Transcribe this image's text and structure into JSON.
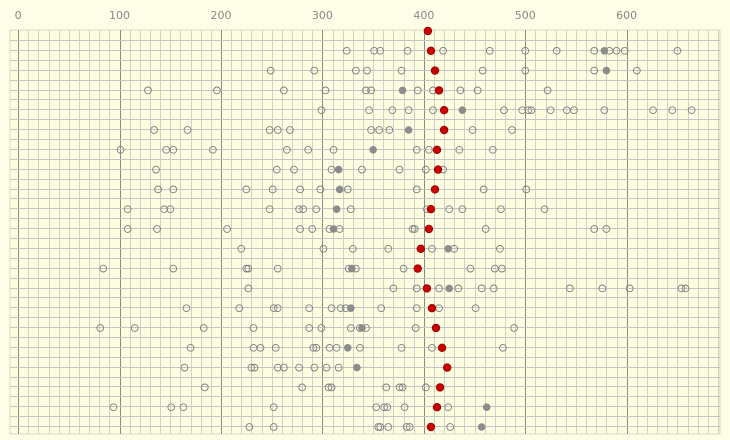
{
  "chart_data": {
    "type": "scatter",
    "title": "",
    "xlabel": "",
    "ylabel": "",
    "xlim": [
      -8,
      692
    ],
    "xticks": [
      0,
      100,
      200,
      300,
      400,
      500,
      600
    ],
    "grid": true,
    "colors": {
      "background": "#fefee8",
      "plot_background": "#fdfde0",
      "hollow_stroke": "#7f7f7f",
      "filled_gray": "#8c8c8c",
      "mean_fill": "#c80000"
    },
    "marker_kinds": [
      "hollow",
      "filled",
      "mean"
    ],
    "rows": [
      {
        "mean": 404,
        "hollow": [],
        "filled": []
      },
      {
        "mean": 407,
        "hollow": [
          324,
          351,
          357,
          384,
          419,
          465,
          500,
          531,
          568,
          583,
          590,
          598,
          650
        ],
        "filled": [
          578
        ]
      },
      {
        "mean": 411,
        "hollow": [
          249,
          292,
          333,
          344,
          378,
          458,
          500,
          568,
          610
        ],
        "filled": [
          580
        ]
      },
      {
        "mean": 415,
        "hollow": [
          128,
          196,
          262,
          303,
          343,
          348,
          394,
          409,
          436,
          453,
          522
        ],
        "filled": [
          379
        ]
      },
      {
        "mean": 420,
        "hollow": [
          299,
          346,
          369,
          385,
          409,
          479,
          497,
          503,
          506,
          525,
          541,
          548,
          578,
          626,
          645,
          664
        ],
        "filled": [
          438
        ]
      },
      {
        "mean": 420,
        "hollow": [
          134,
          167,
          248,
          256,
          268,
          348,
          356,
          366,
          448,
          487
        ],
        "filled": [
          385
        ]
      },
      {
        "mean": 413,
        "hollow": [
          101,
          146,
          153,
          192,
          265,
          286,
          311,
          393,
          405,
          435,
          468
        ],
        "filled": [
          350
        ]
      },
      {
        "mean": 414,
        "hollow": [
          136,
          255,
          272,
          309,
          339,
          376,
          402,
          419
        ],
        "filled": [
          316
        ]
      },
      {
        "mean": 411,
        "hollow": [
          138,
          153,
          225,
          251,
          278,
          298,
          325,
          393,
          459,
          501
        ],
        "filled": [
          317
        ]
      },
      {
        "mean": 407,
        "hollow": [
          108,
          144,
          150,
          248,
          277,
          281,
          294,
          328,
          403,
          425,
          438,
          476,
          519
        ],
        "filled": [
          314
        ]
      },
      {
        "mean": 405,
        "hollow": [
          108,
          137,
          206,
          278,
          290,
          307,
          317,
          389,
          391,
          461,
          568,
          580
        ],
        "filled": [
          311
        ]
      },
      {
        "mean": 397,
        "hollow": [
          220,
          301,
          330,
          365,
          408,
          430,
          475
        ],
        "filled": [
          424
        ]
      },
      {
        "mean": 394,
        "hollow": [
          84,
          153,
          225,
          227,
          256,
          326,
          333,
          380,
          446,
          470,
          477
        ],
        "filled": [
          329
        ]
      },
      {
        "mean": 403,
        "hollow": [
          227,
          370,
          393,
          415,
          434,
          457,
          469,
          544,
          576,
          603,
          654,
          658
        ],
        "filled": [
          425
        ]
      },
      {
        "mean": 408,
        "hollow": [
          166,
          218,
          252,
          256,
          287,
          309,
          318,
          323,
          358,
          393,
          415,
          451
        ],
        "filled": [
          328
        ]
      },
      {
        "mean": 412,
        "hollow": [
          81,
          115,
          183,
          232,
          287,
          299,
          328,
          337,
          343,
          392,
          489
        ],
        "filled": [
          339
        ]
      },
      {
        "mean": 418,
        "hollow": [
          170,
          232,
          239,
          254,
          291,
          294,
          307,
          314,
          337,
          378,
          408,
          478
        ],
        "filled": [
          325
        ]
      },
      {
        "mean": 423,
        "hollow": [
          164,
          230,
          233,
          256,
          262,
          277,
          292,
          304,
          316
        ],
        "filled": [
          334
        ]
      },
      {
        "mean": 416,
        "hollow": [
          184,
          280,
          306,
          309,
          363,
          376,
          379,
          402
        ],
        "filled": []
      },
      {
        "mean": 413,
        "hollow": [
          94,
          151,
          163,
          252,
          353,
          361,
          364,
          381,
          424
        ],
        "filled": [
          462
        ]
      },
      {
        "mean": 407,
        "hollow": [
          228,
          252,
          355,
          357,
          365,
          383,
          386,
          426
        ],
        "filled": [
          457
        ]
      }
    ]
  }
}
